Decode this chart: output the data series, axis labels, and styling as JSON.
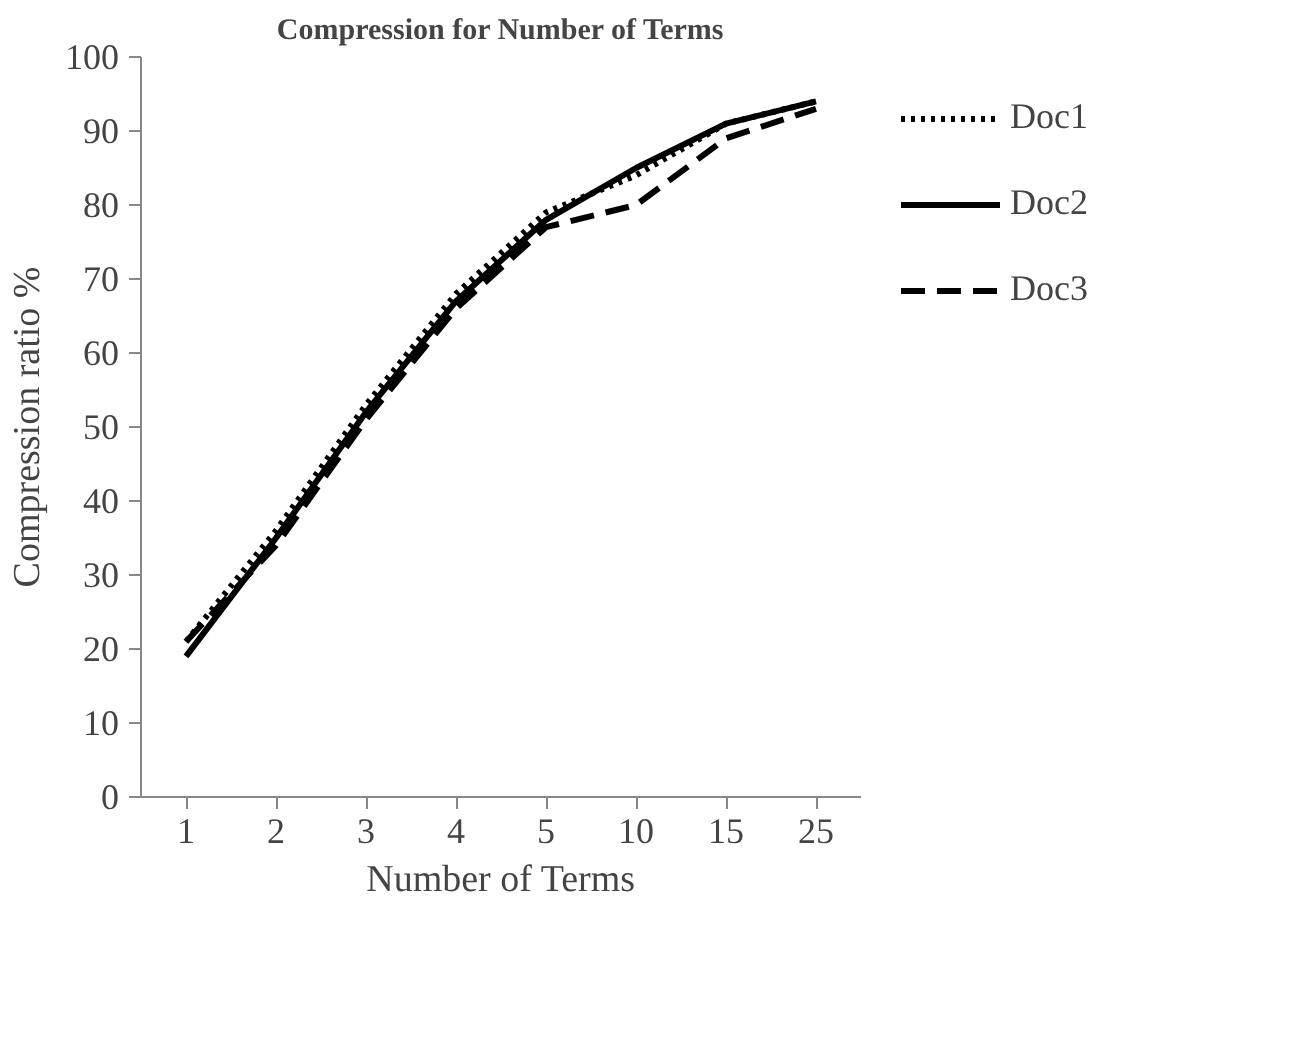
{
  "chart_data": {
    "type": "line",
    "title": "Compression for Number of Terms",
    "xlabel": "Number of Terms",
    "ylabel": "Compression ratio %",
    "categories": [
      "1",
      "2",
      "3",
      "4",
      "5",
      "10",
      "15",
      "25"
    ],
    "series": [
      {
        "name": "Doc1",
        "color": "#000000",
        "line_style": "dotted",
        "values": [
          21,
          36,
          53,
          68,
          79,
          84,
          91,
          94
        ]
      },
      {
        "name": "Doc2",
        "color": "#000000",
        "line_style": "solid",
        "values": [
          19,
          35,
          52,
          67,
          78,
          85,
          91,
          94
        ]
      },
      {
        "name": "Doc3",
        "color": "#000000",
        "line_style": "dashed",
        "values": [
          21,
          34,
          51,
          66,
          77,
          80,
          89,
          93
        ]
      }
    ],
    "ylim": [
      0,
      100
    ],
    "yticks": [
      0,
      10,
      20,
      30,
      40,
      50,
      60,
      70,
      80,
      90,
      100
    ],
    "grid": false,
    "legend": "right",
    "marker": "none"
  }
}
